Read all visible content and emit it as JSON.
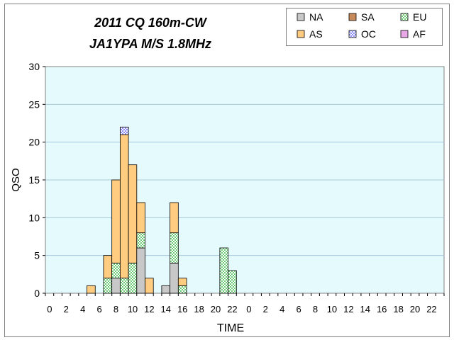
{
  "chart_data": {
    "type": "bar",
    "stacked": true,
    "title_lines": [
      "2011 CQ 160m-CW",
      "JA1YPA  M/S 1.8MHz"
    ],
    "xlabel": "TIME",
    "ylabel": "QSO",
    "ylim": [
      0,
      30
    ],
    "yticks": [
      0,
      5,
      10,
      15,
      20,
      25,
      30
    ],
    "grid": true,
    "legend_position": "top-right",
    "categories": [
      "0",
      "1",
      "2",
      "3",
      "4",
      "5",
      "6",
      "7",
      "8",
      "9",
      "10",
      "11",
      "12",
      "13",
      "14",
      "15",
      "16",
      "17",
      "18",
      "19",
      "20",
      "21",
      "22",
      "23",
      "0",
      "1",
      "2",
      "3",
      "4",
      "5",
      "6",
      "7",
      "8",
      "9",
      "10",
      "11",
      "12",
      "13",
      "14",
      "15",
      "16",
      "17",
      "18",
      "19",
      "20",
      "21",
      "22",
      "23"
    ],
    "tick_labels": [
      "0",
      "2",
      "4",
      "6",
      "8",
      "10",
      "12",
      "14",
      "16",
      "18",
      "20",
      "22",
      "0",
      "2",
      "4",
      "6",
      "8",
      "10",
      "12",
      "14",
      "16",
      "18",
      "20",
      "22"
    ],
    "series": [
      {
        "name": "NA",
        "color": "#c8c8c8",
        "pattern": "solid",
        "values": [
          0,
          0,
          0,
          0,
          0,
          0,
          0,
          0,
          2,
          0,
          0,
          6,
          0,
          0,
          1,
          4,
          0,
          0,
          0,
          0,
          0,
          0,
          0,
          0,
          0,
          0,
          0,
          0,
          0,
          0,
          0,
          0,
          0,
          0,
          0,
          0,
          0,
          0,
          0,
          0,
          0,
          0,
          0,
          0,
          0,
          0,
          0,
          0
        ]
      },
      {
        "name": "SA",
        "color": "#c88a5a",
        "pattern": "solid",
        "values": [
          0,
          0,
          0,
          0,
          0,
          0,
          0,
          0,
          0,
          0,
          0,
          0,
          0,
          0,
          0,
          0,
          0,
          0,
          0,
          0,
          0,
          0,
          0,
          0,
          0,
          0,
          0,
          0,
          0,
          0,
          0,
          0,
          0,
          0,
          0,
          0,
          0,
          0,
          0,
          0,
          0,
          0,
          0,
          0,
          0,
          0,
          0,
          0
        ]
      },
      {
        "name": "EU",
        "color": "#6ecb78",
        "pattern": "checker",
        "values": [
          0,
          0,
          0,
          0,
          0,
          0,
          0,
          2,
          2,
          2,
          4,
          2,
          0,
          0,
          0,
          4,
          1,
          0,
          0,
          0,
          0,
          6,
          3,
          0,
          0,
          0,
          0,
          0,
          0,
          0,
          0,
          0,
          0,
          0,
          0,
          0,
          0,
          0,
          0,
          0,
          0,
          0,
          0,
          0,
          0,
          0,
          0,
          0
        ]
      },
      {
        "name": "AS",
        "color": "#ffcc80",
        "pattern": "solid",
        "values": [
          0,
          0,
          0,
          0,
          0,
          1,
          0,
          3,
          11,
          19,
          13,
          4,
          2,
          0,
          0,
          4,
          1,
          0,
          0,
          0,
          0,
          0,
          0,
          0,
          0,
          0,
          0,
          0,
          0,
          0,
          0,
          0,
          0,
          0,
          0,
          0,
          0,
          0,
          0,
          0,
          0,
          0,
          0,
          0,
          0,
          0,
          0,
          0
        ]
      },
      {
        "name": "OC",
        "color": "#8a8aff",
        "pattern": "checker",
        "values": [
          0,
          0,
          0,
          0,
          0,
          0,
          0,
          0,
          0,
          1,
          0,
          0,
          0,
          0,
          0,
          0,
          0,
          0,
          0,
          0,
          0,
          0,
          0,
          0,
          0,
          0,
          0,
          0,
          0,
          0,
          0,
          0,
          0,
          0,
          0,
          0,
          0,
          0,
          0,
          0,
          0,
          0,
          0,
          0,
          0,
          0,
          0,
          0
        ]
      },
      {
        "name": "AF",
        "color": "#e8a8e8",
        "pattern": "solid",
        "values": [
          0,
          0,
          0,
          0,
          0,
          0,
          0,
          0,
          0,
          0,
          0,
          0,
          0,
          0,
          0,
          0,
          0,
          0,
          0,
          0,
          0,
          0,
          0,
          0,
          0,
          0,
          0,
          0,
          0,
          0,
          0,
          0,
          0,
          0,
          0,
          0,
          0,
          0,
          0,
          0,
          0,
          0,
          0,
          0,
          0,
          0,
          0,
          0
        ]
      }
    ],
    "legend_order": [
      "NA",
      "SA",
      "EU",
      "AS",
      "OC",
      "AF"
    ],
    "colors": {
      "plot_background": "#e4fafd",
      "grid": "#a9c8d8",
      "frame": "#808080"
    }
  }
}
